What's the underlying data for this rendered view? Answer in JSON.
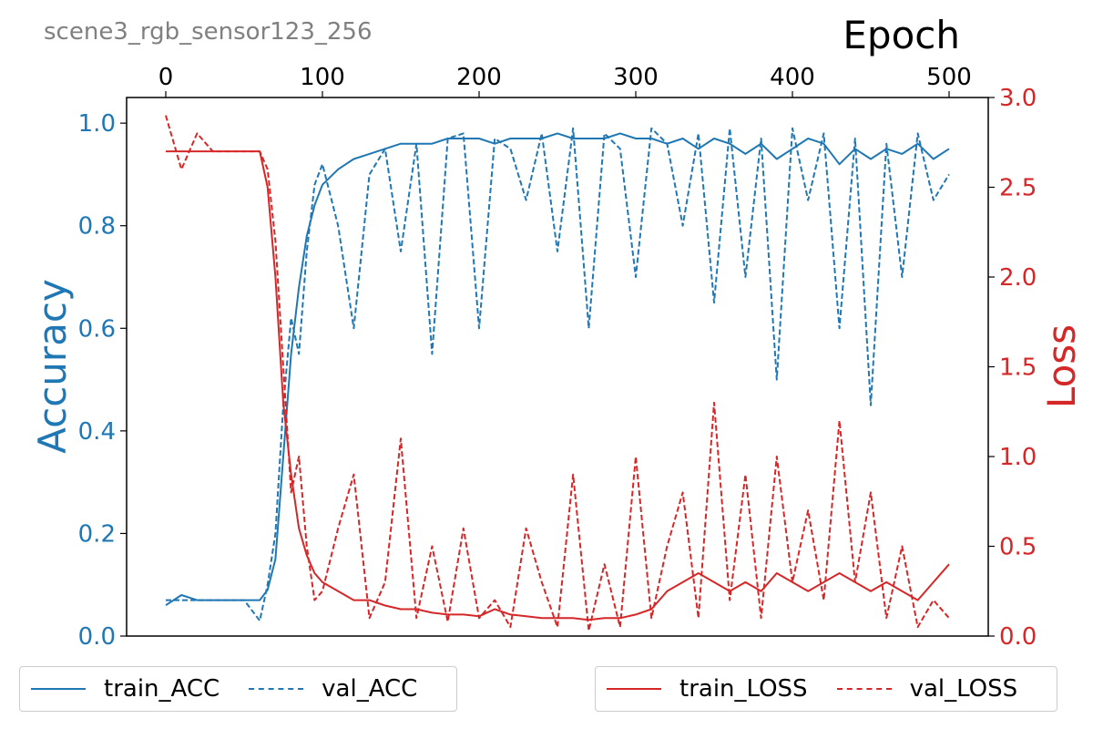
{
  "subtitle": "scene3_rgb_sensor123_256",
  "chart_data": {
    "type": "line",
    "title": "",
    "xlabel": "Epoch",
    "ylabel_left": "Accuracy",
    "ylabel_right": "Loss",
    "xlim": [
      -25,
      525
    ],
    "ylim_left": [
      0,
      1.05
    ],
    "ylim_right": [
      0,
      3.0
    ],
    "x_ticks": [
      0,
      100,
      200,
      300,
      400,
      500
    ],
    "y_left_ticks": [
      "0.0",
      "0.2",
      "0.4",
      "0.6",
      "0.8",
      "1.0"
    ],
    "y_right_ticks": [
      "0.0",
      "0.5",
      "1.0",
      "1.5",
      "2.0",
      "2.5",
      "3.0"
    ],
    "x_axis_position": "top",
    "grid": false,
    "legend_placement": "below",
    "colors": {
      "acc": "#1f77b4",
      "loss": "#d62728",
      "subtitle": "#808080"
    },
    "x": [
      0,
      10,
      20,
      30,
      40,
      50,
      60,
      65,
      70,
      75,
      80,
      85,
      90,
      95,
      100,
      110,
      120,
      130,
      140,
      150,
      160,
      170,
      180,
      190,
      200,
      210,
      220,
      230,
      240,
      250,
      260,
      270,
      280,
      290,
      300,
      310,
      320,
      330,
      340,
      350,
      360,
      370,
      380,
      390,
      400,
      410,
      420,
      430,
      440,
      450,
      460,
      470,
      480,
      490,
      500
    ],
    "series": [
      {
        "name": "train_ACC",
        "axis": "left",
        "style": "solid",
        "values": [
          0.06,
          0.08,
          0.07,
          0.07,
          0.07,
          0.07,
          0.07,
          0.09,
          0.15,
          0.35,
          0.55,
          0.68,
          0.78,
          0.84,
          0.88,
          0.91,
          0.93,
          0.94,
          0.95,
          0.96,
          0.96,
          0.96,
          0.97,
          0.97,
          0.97,
          0.96,
          0.97,
          0.97,
          0.97,
          0.98,
          0.97,
          0.97,
          0.97,
          0.98,
          0.97,
          0.97,
          0.96,
          0.97,
          0.95,
          0.97,
          0.96,
          0.94,
          0.96,
          0.93,
          0.95,
          0.97,
          0.96,
          0.92,
          0.95,
          0.93,
          0.95,
          0.94,
          0.96,
          0.93,
          0.95
        ]
      },
      {
        "name": "val_ACC",
        "axis": "left",
        "style": "dashed",
        "values": [
          0.07,
          0.07,
          0.07,
          0.07,
          0.07,
          0.07,
          0.03,
          0.1,
          0.2,
          0.45,
          0.62,
          0.55,
          0.75,
          0.88,
          0.92,
          0.8,
          0.6,
          0.9,
          0.95,
          0.75,
          0.96,
          0.55,
          0.97,
          0.98,
          0.6,
          0.97,
          0.95,
          0.85,
          0.98,
          0.75,
          0.99,
          0.6,
          0.98,
          0.95,
          0.7,
          0.99,
          0.96,
          0.8,
          0.98,
          0.65,
          0.99,
          0.7,
          0.97,
          0.5,
          0.99,
          0.85,
          0.98,
          0.6,
          0.97,
          0.45,
          0.96,
          0.7,
          0.98,
          0.85,
          0.9
        ]
      },
      {
        "name": "train_LOSS",
        "axis": "right",
        "style": "solid",
        "values": [
          2.7,
          2.7,
          2.7,
          2.7,
          2.7,
          2.7,
          2.7,
          2.5,
          2.0,
          1.3,
          0.9,
          0.6,
          0.45,
          0.35,
          0.3,
          0.25,
          0.2,
          0.2,
          0.17,
          0.15,
          0.15,
          0.13,
          0.12,
          0.12,
          0.11,
          0.15,
          0.12,
          0.11,
          0.1,
          0.1,
          0.1,
          0.09,
          0.1,
          0.1,
          0.12,
          0.15,
          0.25,
          0.3,
          0.35,
          0.3,
          0.25,
          0.3,
          0.25,
          0.35,
          0.3,
          0.25,
          0.3,
          0.35,
          0.3,
          0.25,
          0.3,
          0.25,
          0.2,
          0.3,
          0.4
        ]
      },
      {
        "name": "val_LOSS",
        "axis": "right",
        "style": "dashed",
        "values": [
          2.9,
          2.6,
          2.8,
          2.7,
          2.7,
          2.7,
          2.7,
          2.6,
          2.2,
          1.5,
          0.8,
          1.0,
          0.5,
          0.2,
          0.25,
          0.6,
          0.9,
          0.1,
          0.3,
          1.1,
          0.1,
          0.5,
          0.08,
          0.6,
          0.1,
          0.2,
          0.05,
          0.6,
          0.3,
          0.05,
          0.9,
          0.03,
          0.4,
          0.05,
          1.0,
          0.1,
          0.5,
          0.8,
          0.1,
          1.3,
          0.2,
          0.9,
          0.1,
          1.0,
          0.3,
          0.7,
          0.2,
          1.2,
          0.3,
          0.8,
          0.1,
          0.5,
          0.05,
          0.2,
          0.1
        ]
      }
    ]
  }
}
